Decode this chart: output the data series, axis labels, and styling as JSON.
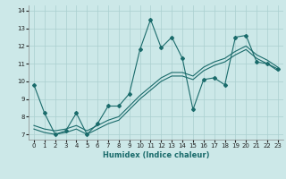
{
  "xlabel": "Humidex (Indice chaleur)",
  "xlim": [
    -0.5,
    23.5
  ],
  "ylim": [
    6.7,
    14.3
  ],
  "yticks": [
    7,
    8,
    9,
    10,
    11,
    12,
    13,
    14
  ],
  "xticks": [
    0,
    1,
    2,
    3,
    4,
    5,
    6,
    7,
    8,
    9,
    10,
    11,
    12,
    13,
    14,
    15,
    16,
    17,
    18,
    19,
    20,
    21,
    22,
    23
  ],
  "bg_color": "#cce8e8",
  "line_color": "#1a6b6b",
  "grid_color": "#aacfcf",
  "line1_x": [
    0,
    1,
    2,
    3,
    4,
    5,
    6,
    7,
    8,
    9,
    10,
    11,
    12,
    13,
    14,
    15,
    16,
    17,
    18,
    19,
    20,
    21,
    22,
    23
  ],
  "line1_y": [
    9.8,
    8.2,
    7.0,
    7.2,
    8.2,
    7.0,
    7.6,
    8.6,
    8.6,
    9.3,
    11.8,
    13.5,
    11.9,
    12.5,
    11.3,
    8.4,
    10.1,
    10.2,
    9.8,
    12.5,
    12.6,
    11.1,
    11.0,
    10.7
  ],
  "line2_x": [
    0,
    1,
    2,
    3,
    4,
    5,
    6,
    7,
    8,
    9,
    10,
    11,
    12,
    13,
    14,
    15,
    16,
    17,
    18,
    19,
    20,
    21,
    22,
    23
  ],
  "line2_y": [
    7.5,
    7.3,
    7.2,
    7.3,
    7.5,
    7.2,
    7.5,
    7.8,
    8.0,
    8.6,
    9.2,
    9.7,
    10.2,
    10.5,
    10.5,
    10.3,
    10.8,
    11.1,
    11.3,
    11.7,
    12.0,
    11.5,
    11.2,
    10.8
  ],
  "line3_x": [
    0,
    1,
    2,
    3,
    4,
    5,
    6,
    7,
    8,
    9,
    10,
    11,
    12,
    13,
    14,
    15,
    16,
    17,
    18,
    19,
    20,
    21,
    22,
    23
  ],
  "line3_y": [
    7.3,
    7.1,
    7.0,
    7.1,
    7.3,
    7.0,
    7.3,
    7.6,
    7.8,
    8.4,
    9.0,
    9.5,
    10.0,
    10.3,
    10.3,
    10.1,
    10.6,
    10.9,
    11.1,
    11.5,
    11.8,
    11.3,
    11.0,
    10.6
  ]
}
